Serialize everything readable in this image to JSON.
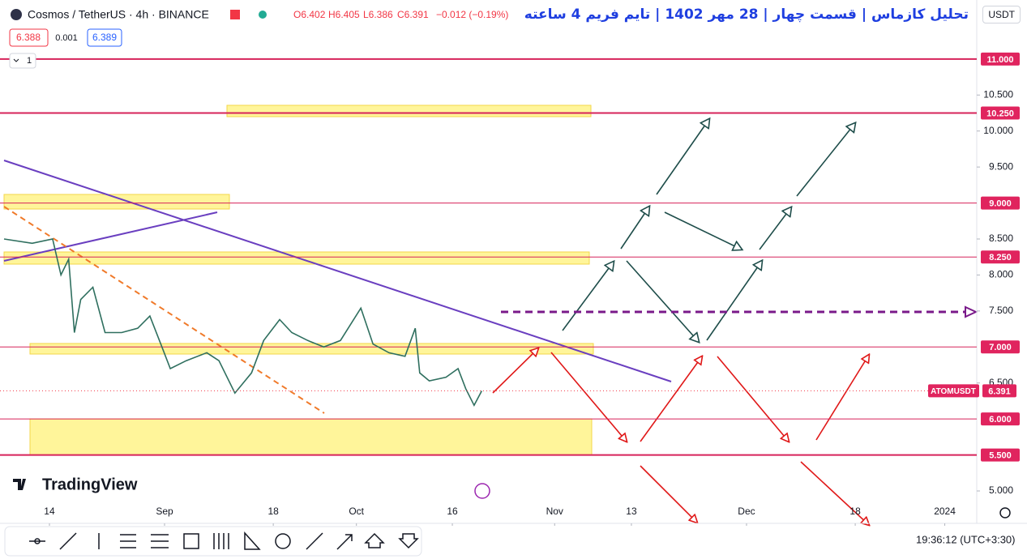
{
  "header": {
    "symbol": "Cosmos / TetherUS · 4h · BINANCE",
    "open": "O6.402",
    "high": "H6.405",
    "low": "L6.386",
    "close": "C6.391",
    "change": "−0.012 (−0.19%)",
    "bid": "6.388",
    "spread": "0.001",
    "ask": "6.389",
    "interval_count": "1",
    "currency": "USDT",
    "annotation_title": "تحلیل کازماس | قسمت چهار | 28 مهر 1402 | تایم فریم 4 ساعته"
  },
  "footer": {
    "brand": "TradingView",
    "time": "19:36:12 (UTC+3:30)"
  },
  "chart_data": {
    "type": "line",
    "series": [
      {
        "name": "ATOMUSDT",
        "color": "#2f6f5f",
        "x": [
          -7.1,
          -2.7,
          0.5,
          1.8,
          3.0,
          3.9,
          4.9,
          6.8,
          8.7,
          11.3,
          13.8,
          15.7,
          17.6,
          18.9,
          21.4,
          24.6,
          26.5,
          29.0,
          31.6,
          33.5,
          36.0,
          37.9,
          40.4,
          42.9,
          45.5,
          48.7,
          50.6,
          53.1,
          55.6,
          57.2,
          57.9,
          59.4,
          62.0,
          63.9,
          65.1,
          66.4,
          67.6
        ],
        "values": [
          8.5,
          8.44,
          8.5,
          8.0,
          8.22,
          7.2,
          7.66,
          7.83,
          7.2,
          7.2,
          7.26,
          7.43,
          7.0,
          6.7,
          6.81,
          6.92,
          6.81,
          6.36,
          6.64,
          7.09,
          7.38,
          7.2,
          7.09,
          7.0,
          7.09,
          7.54,
          7.04,
          6.92,
          6.87,
          7.26,
          6.64,
          6.53,
          6.58,
          6.7,
          6.42,
          6.19,
          6.39
        ]
      }
    ],
    "last_price": 6.391,
    "levels": [
      {
        "value": 11,
        "label": "11.000"
      },
      {
        "value": 10.25,
        "label": "10.250"
      },
      {
        "value": 9,
        "label": "9.000"
      },
      {
        "value": 8.25,
        "label": "8.250"
      },
      {
        "value": 7,
        "label": "7.000"
      },
      {
        "value": 6,
        "label": "6.000"
      },
      {
        "value": 5.5,
        "label": "5.500"
      }
    ],
    "ylim": [
      4.55,
      11.82
    ],
    "yticks": [
      {
        "value": 5,
        "label": "5.000"
      },
      {
        "value": 6.5,
        "label": "6.500"
      },
      {
        "value": 7.5,
        "label": "7.500"
      },
      {
        "value": 8,
        "label": "8.000"
      },
      {
        "value": 8.5,
        "label": "8.500"
      },
      {
        "value": 9.5,
        "label": "9.500"
      },
      {
        "value": 10,
        "label": "10.000"
      },
      {
        "value": 10.5,
        "label": "10.500"
      }
    ],
    "xlim": [
      -7.73,
      145
    ],
    "xticks": [
      {
        "value": 0,
        "label": "14"
      },
      {
        "value": 18,
        "label": "Sep"
      },
      {
        "value": 35,
        "label": "18"
      },
      {
        "value": 48,
        "label": "Oct"
      },
      {
        "value": 63,
        "label": "16"
      },
      {
        "value": 79,
        "label": "Nov"
      },
      {
        "value": 91,
        "label": "13"
      },
      {
        "value": 109,
        "label": "Dec"
      },
      {
        "value": 126,
        "label": "18"
      },
      {
        "value": 140,
        "label": "2024"
      }
    ]
  }
}
